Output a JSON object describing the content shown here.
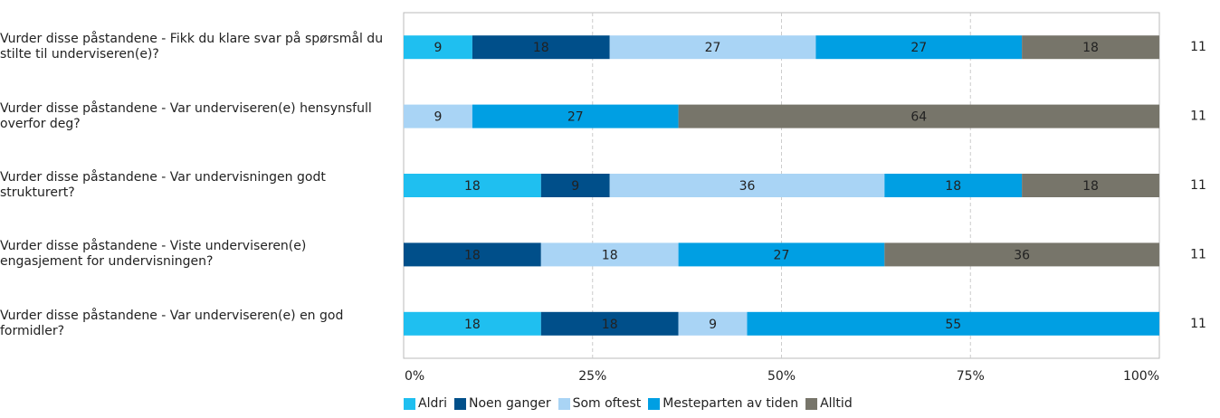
{
  "chart_data": {
    "type": "stacked-bar-horizontal",
    "categories": [
      "Vurder disse påstandene - Fikk du klare svar på spørsmål du stilte til underviseren(e)?",
      "Vurder disse påstandene - Var underviseren(e) hensynsfull overfor deg?",
      "Vurder disse påstandene - Var undervisningen godt strukturert?",
      "Vurder disse påstandene - Viste underviseren(e) engasjement for undervisningen?",
      "Vurder disse påstandene - Var underviseren(e) en god formidler?"
    ],
    "n": [
      "11",
      "11",
      "11",
      "11",
      "11"
    ],
    "series": [
      {
        "name": "Aldri",
        "color": "#1fbff0",
        "values": [
          9.09,
          null,
          18.18,
          null,
          18.18
        ],
        "value_labels": [
          "9",
          null,
          "18",
          null,
          "18"
        ]
      },
      {
        "name": "Noen ganger",
        "color": "#004f8a",
        "values": [
          18.18,
          null,
          9.09,
          18.18,
          18.18
        ],
        "value_labels": [
          "18",
          null,
          "9",
          "18",
          "18"
        ]
      },
      {
        "name": "Som oftest",
        "color": "#a9d4f5",
        "values": [
          27.27,
          9.09,
          36.36,
          18.18,
          9.09
        ],
        "value_labels": [
          "27",
          "9",
          "36",
          "18",
          "9"
        ]
      },
      {
        "name": "Mesteparten av tiden",
        "color": "#009fe3",
        "values": [
          27.27,
          27.27,
          18.18,
          27.27,
          54.55
        ],
        "value_labels": [
          "27",
          "27",
          "18",
          "27",
          "55"
        ]
      },
      {
        "name": "Alltid",
        "color": "#77756a",
        "values": [
          18.18,
          63.64,
          18.18,
          36.36,
          null
        ],
        "value_labels": [
          "18",
          "64",
          "18",
          "36",
          null
        ]
      }
    ],
    "xlim": [
      0,
      100
    ],
    "xticks": [
      {
        "value": 0,
        "label": "0%"
      },
      {
        "value": 25,
        "label": "25%"
      },
      {
        "value": 50,
        "label": "50%"
      },
      {
        "value": 75,
        "label": "75%"
      },
      {
        "value": 100,
        "label": "100%"
      }
    ],
    "grid": true
  }
}
